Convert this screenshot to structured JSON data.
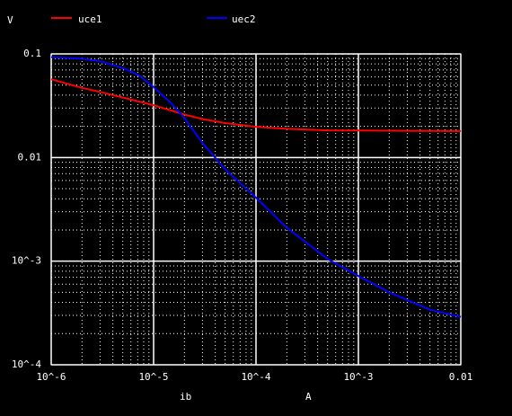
{
  "chart_data": {
    "type": "line",
    "y_unit": "V",
    "x_label": "ib",
    "x_unit": "A",
    "x_scale": "log",
    "y_scale": "log",
    "xlim": [
      1e-06,
      0.01
    ],
    "ylim": [
      0.0001,
      0.1
    ],
    "x_ticks": [
      {
        "value": 1e-06,
        "label": "10^-6"
      },
      {
        "value": 1e-05,
        "label": "10^-5"
      },
      {
        "value": 0.0001,
        "label": "10^-4"
      },
      {
        "value": 0.001,
        "label": "10^-3"
      },
      {
        "value": 0.01,
        "label": "0.01"
      }
    ],
    "y_ticks": [
      {
        "value": 0.1,
        "label": "0.1"
      },
      {
        "value": 0.01,
        "label": "0.01"
      },
      {
        "value": 0.001,
        "label": "10^-3"
      },
      {
        "value": 0.0001,
        "label": "10^-4"
      }
    ],
    "grid": true,
    "background_color": "#000000",
    "grid_color": "#ffffff",
    "legend_position": "top",
    "series": [
      {
        "name": "uce1",
        "color": "#ff0000",
        "x": [
          1e-06,
          2e-06,
          3e-06,
          5e-06,
          1e-05,
          2e-05,
          3e-05,
          5e-05,
          0.0001,
          0.0002,
          0.0005,
          0.001,
          0.003,
          0.01
        ],
        "y": [
          0.057,
          0.047,
          0.043,
          0.038,
          0.032,
          0.026,
          0.0235,
          0.0215,
          0.0198,
          0.0189,
          0.0183,
          0.0182,
          0.0181,
          0.018
        ]
      },
      {
        "name": "uec2",
        "color": "#0000ff",
        "x": [
          1e-06,
          2e-06,
          3e-06,
          5e-06,
          7e-06,
          1e-05,
          1.5e-05,
          2e-05,
          3e-05,
          5e-05,
          0.0001,
          0.0002,
          0.0005,
          0.001,
          0.002,
          0.005,
          0.01
        ],
        "y": [
          0.093,
          0.09,
          0.085,
          0.073,
          0.063,
          0.048,
          0.033,
          0.024,
          0.0138,
          0.0077,
          0.0041,
          0.0021,
          0.00105,
          0.00072,
          0.0005,
          0.00034,
          0.00029
        ]
      }
    ]
  }
}
